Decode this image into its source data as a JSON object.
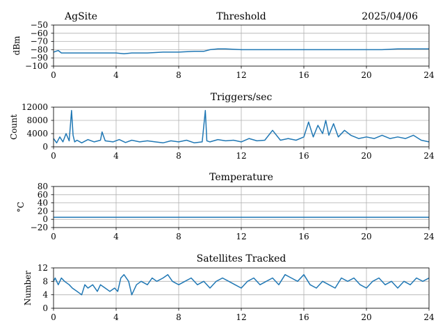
{
  "header": {
    "site": "AgSite",
    "date": "2025/04/06"
  },
  "colors": {
    "series": "#1f77b4",
    "grid": "#b0b0b0"
  },
  "chart_data": [
    {
      "id": "threshold",
      "type": "line",
      "title": "Threshold",
      "ylabel": "dBm",
      "xlabel": "",
      "xlim": [
        0,
        24
      ],
      "ylim": [
        -100,
        -50
      ],
      "xticks": [
        0,
        4,
        8,
        12,
        16,
        20,
        24
      ],
      "yticks": [
        -100,
        -90,
        -80,
        -70,
        -60,
        -50
      ],
      "ytick_labels": [
        "−100",
        "−90",
        "−80",
        "−70",
        "−60",
        "−50"
      ],
      "grid": true,
      "series": [
        {
          "name": "Threshold",
          "x": [
            0,
            0.3,
            0.5,
            1,
            2,
            3,
            4,
            4.5,
            5,
            6,
            7,
            8,
            9,
            9.6,
            10,
            10.5,
            11,
            12,
            13,
            14,
            15,
            16,
            17,
            18,
            19,
            20,
            21,
            22,
            23,
            24
          ],
          "y": [
            -83,
            -81,
            -84,
            -84,
            -84,
            -84,
            -84,
            -85,
            -84,
            -84,
            -83,
            -83,
            -82,
            -82,
            -80,
            -79,
            -79,
            -80,
            -80,
            -80,
            -80,
            -80,
            -80,
            -80,
            -80,
            -80,
            -80,
            -79,
            -79,
            -79
          ]
        }
      ]
    },
    {
      "id": "triggers",
      "type": "line",
      "title": "Triggers/sec",
      "ylabel": "Count",
      "xlabel": "",
      "xlim": [
        0,
        24
      ],
      "ylim": [
        0,
        12000
      ],
      "xticks": [
        0,
        4,
        8,
        12,
        16,
        20,
        24
      ],
      "yticks": [
        0,
        4000,
        8000,
        12000
      ],
      "ytick_labels": [
        "0",
        "4000",
        "8000",
        "12000"
      ],
      "grid": true,
      "series": [
        {
          "name": "Triggers/sec",
          "x": [
            0,
            0.2,
            0.4,
            0.6,
            0.8,
            1.0,
            1.15,
            1.25,
            1.35,
            1.5,
            1.8,
            2.2,
            2.6,
            3.0,
            3.1,
            3.3,
            3.8,
            4.2,
            4.6,
            5.0,
            5.5,
            6.0,
            6.5,
            7.0,
            7.5,
            8.0,
            8.5,
            9.0,
            9.5,
            9.7,
            9.8,
            10.0,
            10.5,
            11.0,
            11.5,
            12.0,
            12.5,
            13.0,
            13.5,
            14.0,
            14.5,
            15.0,
            15.5,
            16.0,
            16.3,
            16.6,
            16.9,
            17.2,
            17.4,
            17.6,
            17.9,
            18.2,
            18.6,
            19.0,
            19.5,
            20.0,
            20.5,
            21.0,
            21.5,
            22.0,
            22.5,
            23.0,
            23.5,
            24.0
          ],
          "y": [
            2500,
            1200,
            3000,
            1500,
            4000,
            1800,
            11000,
            3500,
            1500,
            2000,
            1200,
            2200,
            1500,
            2000,
            4500,
            1800,
            1500,
            2200,
            1300,
            2000,
            1500,
            1800,
            1500,
            1200,
            1800,
            1500,
            2000,
            1200,
            1500,
            11000,
            1800,
            1500,
            2200,
            1800,
            2000,
            1500,
            2500,
            1800,
            2000,
            5000,
            2000,
            2500,
            2000,
            3000,
            7500,
            3000,
            6500,
            4000,
            8000,
            3500,
            7000,
            3000,
            5000,
            3500,
            2500,
            3000,
            2500,
            3500,
            2500,
            3000,
            2500,
            3500,
            2000,
            1500
          ]
        }
      ]
    },
    {
      "id": "temperature",
      "type": "line",
      "title": "Temperature",
      "ylabel": "°C",
      "xlabel": "",
      "xlim": [
        0,
        24
      ],
      "ylim": [
        -20,
        80
      ],
      "xticks": [
        0,
        4,
        8,
        12,
        16,
        20,
        24
      ],
      "yticks": [
        -20,
        0,
        20,
        40,
        60,
        80
      ],
      "ytick_labels": [
        "−20",
        "0",
        "20",
        "40",
        "60",
        "80"
      ],
      "grid": true,
      "series": [
        {
          "name": "Temperature",
          "x": [
            0,
            24
          ],
          "y": [
            5,
            5
          ]
        }
      ]
    },
    {
      "id": "satellites",
      "type": "line",
      "title": "Satellites Tracked",
      "ylabel": "Number",
      "xlabel": "",
      "xlim": [
        0,
        24
      ],
      "ylim": [
        0,
        12
      ],
      "xticks": [
        0,
        4,
        8,
        12,
        16,
        20,
        24
      ],
      "yticks": [
        0,
        4,
        8,
        12
      ],
      "ytick_labels": [
        "0",
        "4",
        "8",
        "12"
      ],
      "grid": true,
      "series": [
        {
          "name": "Satellites",
          "x": [
            0,
            0.1,
            0.3,
            0.5,
            0.7,
            1.0,
            1.2,
            1.5,
            1.8,
            2.0,
            2.2,
            2.5,
            2.8,
            3.0,
            3.3,
            3.6,
            3.9,
            4.1,
            4.3,
            4.5,
            4.8,
            5.0,
            5.3,
            5.6,
            6.0,
            6.3,
            6.6,
            7.0,
            7.3,
            7.6,
            8.0,
            8.4,
            8.8,
            9.2,
            9.6,
            10.0,
            10.4,
            10.8,
            11.2,
            11.6,
            12.0,
            12.4,
            12.8,
            13.2,
            13.6,
            14.0,
            14.4,
            14.8,
            15.2,
            15.6,
            16.0,
            16.4,
            16.8,
            17.2,
            17.6,
            18.0,
            18.4,
            18.8,
            19.2,
            19.6,
            20.0,
            20.4,
            20.8,
            21.2,
            21.6,
            22.0,
            22.4,
            22.8,
            23.2,
            23.6,
            24.0
          ],
          "y": [
            8,
            9,
            7,
            9,
            8,
            7,
            6,
            5,
            4,
            7,
            6,
            7,
            5,
            7,
            6,
            5,
            6,
            5,
            9,
            10,
            8,
            4,
            7,
            8,
            7,
            9,
            8,
            9,
            10,
            8,
            7,
            8,
            9,
            7,
            8,
            6,
            8,
            9,
            8,
            7,
            6,
            8,
            9,
            7,
            8,
            9,
            7,
            10,
            9,
            8,
            10,
            7,
            6,
            8,
            7,
            6,
            9,
            8,
            9,
            7,
            6,
            8,
            9,
            7,
            8,
            6,
            8,
            7,
            9,
            8,
            9
          ]
        }
      ]
    }
  ]
}
